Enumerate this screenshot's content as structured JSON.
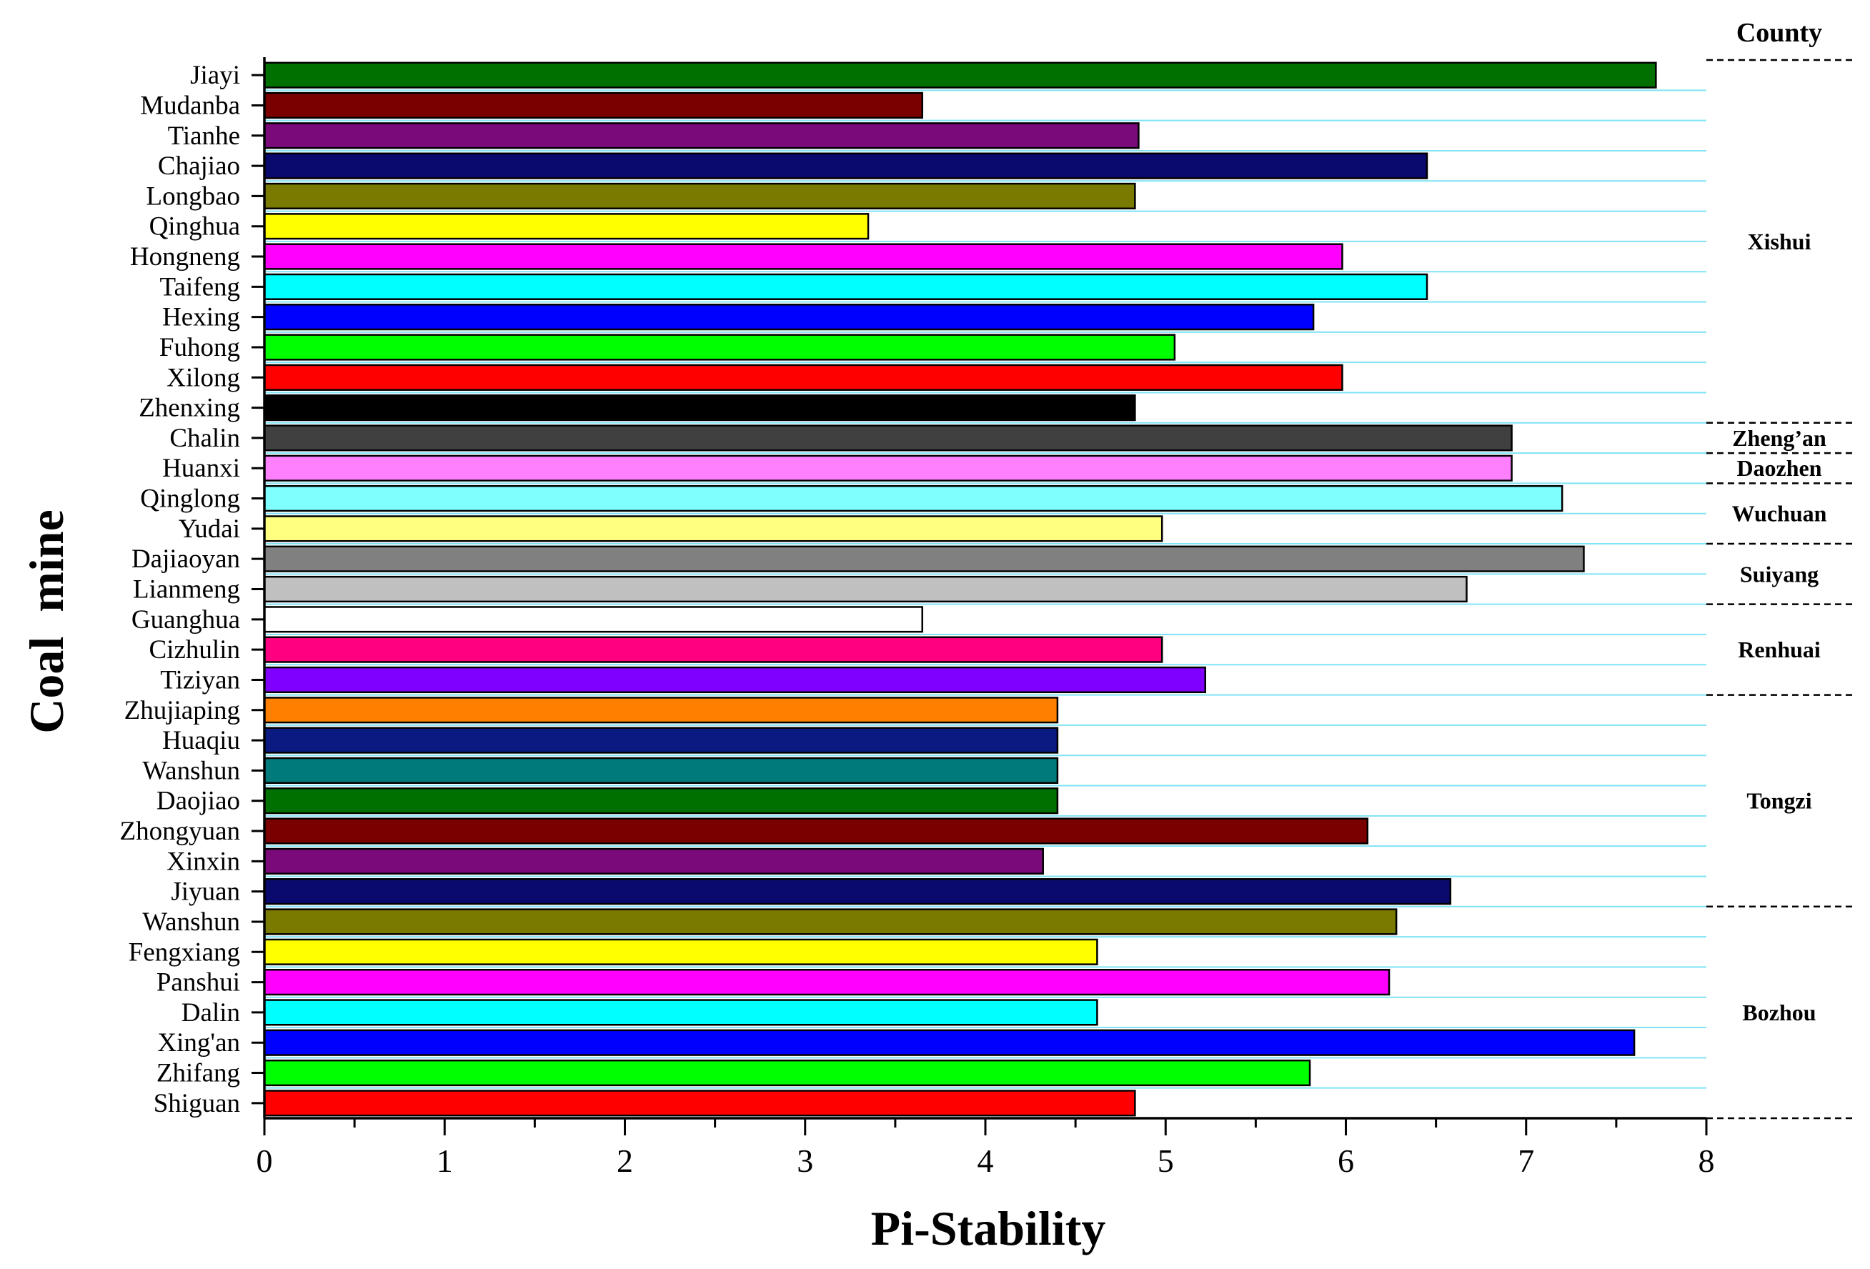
{
  "chart_data": {
    "type": "bar",
    "orientation": "horizontal",
    "title": "",
    "xlabel": "Pi-Stability",
    "ylabel": "Coal  mine",
    "xlim": [
      0,
      8
    ],
    "x_ticks": [
      0,
      1,
      2,
      3,
      4,
      5,
      6,
      7,
      8
    ],
    "x_minor_step": 0.5,
    "grid": "horizontal lines between categories",
    "legend": "none",
    "categories": [
      "Jiayi",
      "Mudanba",
      "Tianhe",
      "Chajiao",
      "Longbao",
      "Qinghua",
      "Hongneng",
      "Taifeng",
      "Hexing",
      "Fuhong",
      "Xilong",
      "Zhenxing",
      "Chalin",
      "Huanxi",
      "Qinglong",
      "Yudai",
      "Dajiaoyan",
      "Lianmeng",
      "Guanghua",
      "Cizhulin",
      "Tiziyan",
      "Zhujiaping",
      "Huaqiu",
      "Wanshun",
      "Daojiao",
      "Zhongyuan",
      "Xinxin",
      "Jiyuan",
      "Wanshun",
      "Fengxiang",
      "Panshui",
      "Dalin",
      "Xing'an",
      "Zhifang",
      "Shiguan"
    ],
    "values": [
      7.72,
      3.65,
      4.85,
      6.45,
      4.83,
      3.35,
      5.98,
      6.45,
      5.82,
      5.05,
      5.98,
      4.83,
      6.92,
      6.92,
      7.2,
      4.98,
      7.32,
      6.67,
      3.65,
      4.98,
      5.22,
      4.4,
      4.4,
      4.4,
      4.4,
      6.12,
      4.32,
      6.58,
      6.28,
      4.62,
      6.24,
      4.62,
      7.6,
      5.8,
      4.83
    ],
    "colors": [
      "#007000",
      "#7a0000",
      "#7a0a7a",
      "#0a0a6e",
      "#7a7a00",
      "#ffff00",
      "#ff00ff",
      "#00ffff",
      "#0000ff",
      "#00ff00",
      "#ff0000",
      "#000000",
      "#404040",
      "#ff80ff",
      "#80ffff",
      "#ffff80",
      "#808080",
      "#c0c0c0",
      "#ffffff",
      "#ff0080",
      "#8000ff",
      "#ff8000",
      "#0a1a80",
      "#007a7a",
      "#007000",
      "#7a0000",
      "#7a0a7a",
      "#0a0a6e",
      "#7a7a00",
      "#ffff00",
      "#ff00ff",
      "#00ffff",
      "#0000ff",
      "#00ff00",
      "#ff0000"
    ],
    "county_header": "County",
    "counties": [
      {
        "name": "Xishui",
        "start": 0,
        "end": 11
      },
      {
        "name": "Zheng’an",
        "start": 12,
        "end": 12
      },
      {
        "name": "Daozhen",
        "start": 13,
        "end": 13
      },
      {
        "name": "Wuchuan",
        "start": 14,
        "end": 15
      },
      {
        "name": "Suiyang",
        "start": 16,
        "end": 17
      },
      {
        "name": "Renhuai",
        "start": 18,
        "end": 20
      },
      {
        "name": "Tongzi",
        "start": 21,
        "end": 27
      },
      {
        "name": "Bozhou",
        "start": 28,
        "end": 34
      }
    ]
  }
}
